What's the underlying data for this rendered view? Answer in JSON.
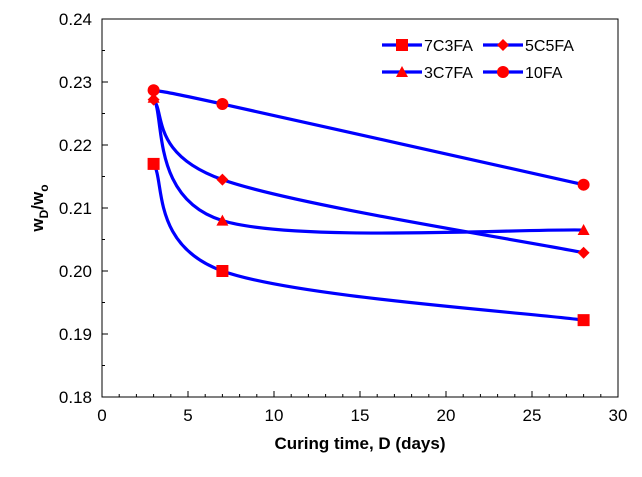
{
  "chart_data": {
    "type": "line",
    "xlabel": "Curing time, D (days)",
    "ylabel": {
      "main": "w",
      "sub1": "D",
      "sep": "/w",
      "sub2": "o"
    },
    "xlim": [
      0,
      30
    ],
    "ylim": [
      0.18,
      0.24
    ],
    "x_ticks": [
      0,
      5,
      10,
      15,
      20,
      25,
      30
    ],
    "x_tick_labels": [
      "0",
      "5",
      "10",
      "15",
      "20",
      "25",
      "30"
    ],
    "y_ticks": [
      0.18,
      0.19,
      0.2,
      0.21,
      0.22,
      0.23,
      0.24
    ],
    "y_tick_labels": [
      "0.18",
      "0.19",
      "0.20",
      "0.21",
      "0.22",
      "0.23",
      "0.24"
    ],
    "grid": false,
    "legend_position": "top-right",
    "line_color": "#0000ff",
    "marker_color": "#ff0000",
    "series": [
      {
        "name": "7C3FA",
        "marker": "square",
        "x": [
          3,
          7,
          28
        ],
        "y": [
          0.217,
          0.2,
          0.1922
        ]
      },
      {
        "name": "5C5FA",
        "marker": "diamond",
        "x": [
          3,
          7,
          28
        ],
        "y": [
          0.2272,
          0.2145,
          0.2029
        ]
      },
      {
        "name": "3C7FA",
        "marker": "triangle",
        "x": [
          3,
          7,
          28
        ],
        "y": [
          0.2275,
          0.208,
          0.2065
        ]
      },
      {
        "name": "10FA",
        "marker": "circle",
        "x": [
          3,
          7,
          28
        ],
        "y": [
          0.2287,
          0.2265,
          0.2137
        ]
      }
    ]
  }
}
